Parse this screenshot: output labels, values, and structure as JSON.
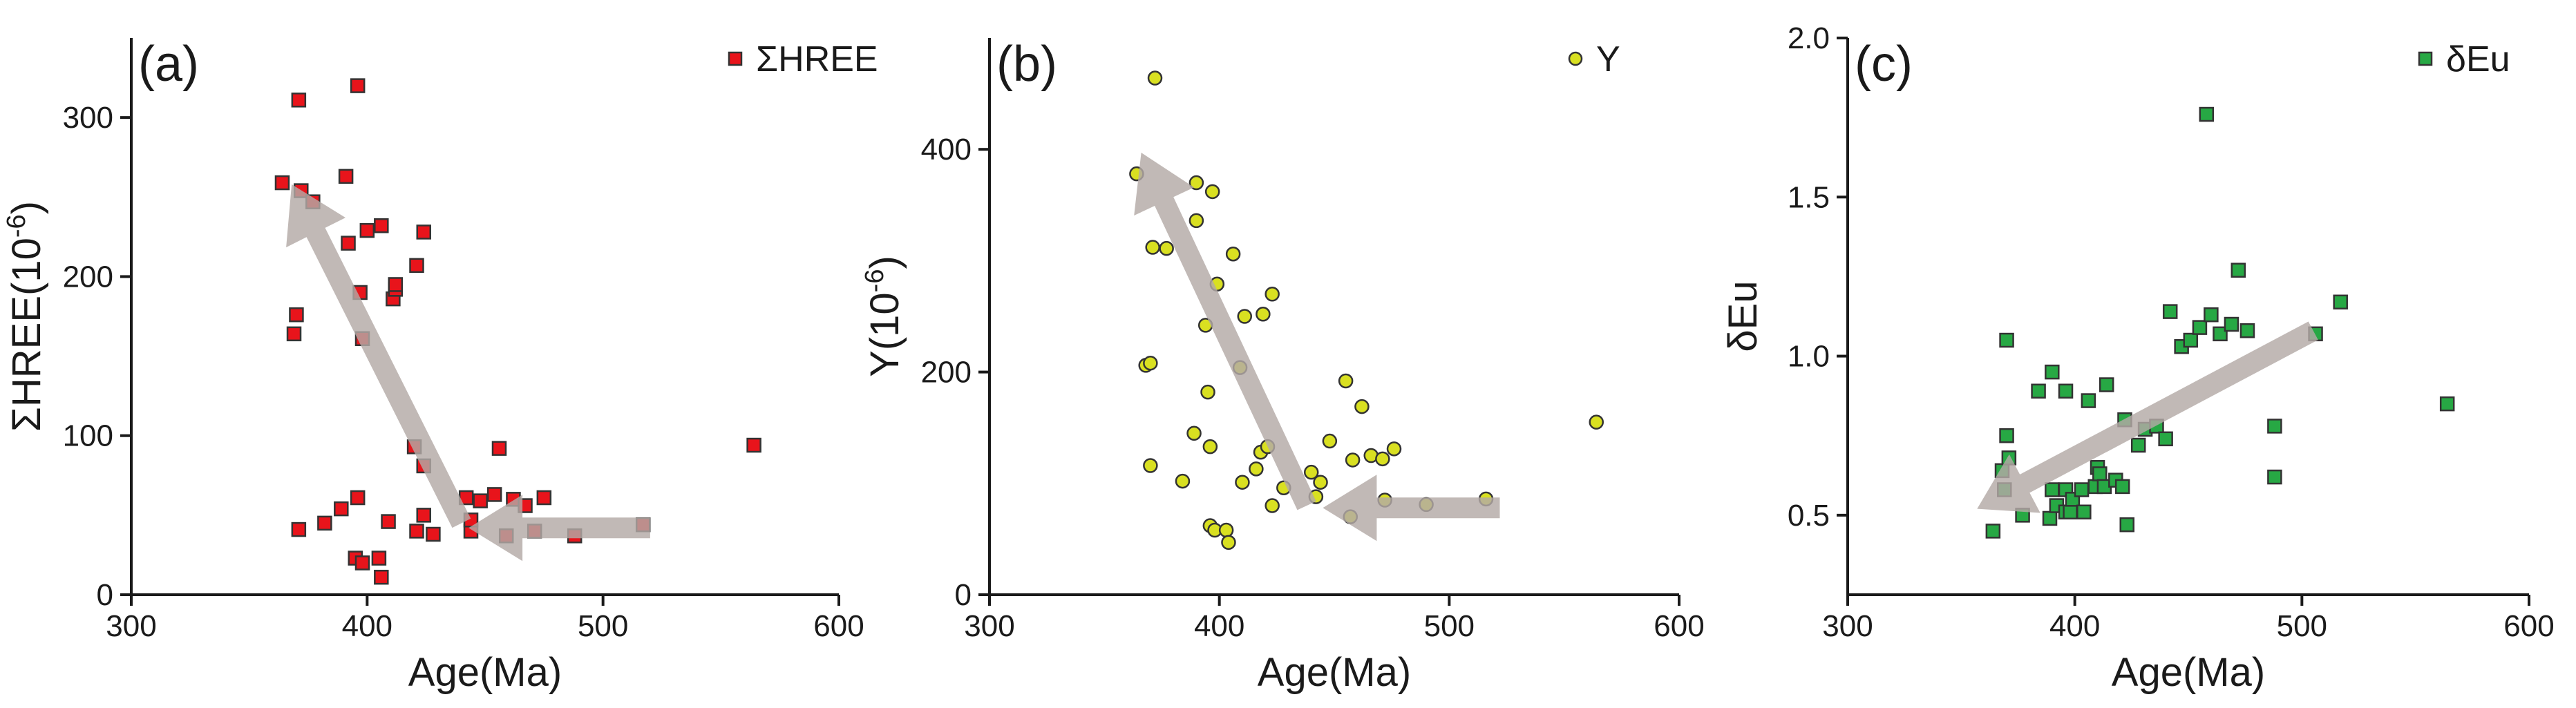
{
  "chart_data": [
    {
      "type": "scatter",
      "panel_label": "(a)",
      "xlabel": "Age(Ma)",
      "ylabel": "ΣHREE(10-6)",
      "ylabel_base": "ΣHREE(10",
      "ylabel_exp": "-6",
      "ylabel_close": ")",
      "xlim": [
        300,
        600
      ],
      "ylim": [
        0,
        350
      ],
      "xticks": [
        300,
        400,
        500,
        600
      ],
      "yticks": [
        0,
        100,
        200,
        300
      ],
      "marker": "square",
      "legend_position": "top-right",
      "grid": false,
      "series": [
        {
          "name": "ΣHREE",
          "color": "#e8141b",
          "points": [
            [
              364,
              259
            ],
            [
              369,
              164
            ],
            [
              370,
              176
            ],
            [
              371,
              41
            ],
            [
              371,
              311
            ],
            [
              372,
              254
            ],
            [
              377,
              247
            ],
            [
              382,
              45
            ],
            [
              389,
              54
            ],
            [
              391,
              263
            ],
            [
              392,
              221
            ],
            [
              395,
              23
            ],
            [
              396,
              61
            ],
            [
              396,
              320
            ],
            [
              397,
              190
            ],
            [
              398,
              161
            ],
            [
              398,
              20
            ],
            [
              400,
              229
            ],
            [
              405,
              23
            ],
            [
              406,
              11
            ],
            [
              406,
              232
            ],
            [
              409,
              46
            ],
            [
              411,
              186
            ],
            [
              412,
              192
            ],
            [
              412,
              195
            ],
            [
              420,
              93
            ],
            [
              421,
              207
            ],
            [
              421,
              40
            ],
            [
              424,
              228
            ],
            [
              424,
              81
            ],
            [
              424,
              50
            ],
            [
              428,
              38
            ],
            [
              442,
              61
            ],
            [
              444,
              40
            ],
            [
              444,
              47
            ],
            [
              448,
              59
            ],
            [
              454,
              63
            ],
            [
              456,
              92
            ],
            [
              459,
              37
            ],
            [
              462,
              60
            ],
            [
              467,
              56
            ],
            [
              471,
              40
            ],
            [
              475,
              61
            ],
            [
              488,
              37
            ],
            [
              517,
              44
            ],
            [
              564,
              94
            ]
          ]
        }
      ],
      "trend_arrows": [
        {
          "from": [
            440,
            45
          ],
          "to": [
            368,
            258
          ]
        },
        {
          "from": [
            520,
            42
          ],
          "to": [
            443,
            42
          ]
        }
      ]
    },
    {
      "type": "scatter",
      "panel_label": "(b)",
      "xlabel": "Age(Ma)",
      "ylabel": "Y(10-6)",
      "ylabel_base": "Y(10",
      "ylabel_exp": "-6",
      "ylabel_close": ")",
      "xlim": [
        300,
        600
      ],
      "ylim": [
        0,
        500
      ],
      "xticks": [
        300,
        400,
        500,
        600
      ],
      "yticks": [
        0,
        200,
        400
      ],
      "marker": "circle",
      "legend_position": "top-right",
      "grid": false,
      "series": [
        {
          "name": "Y",
          "color": "#d9e021",
          "points": [
            [
              364,
              378
            ],
            [
              368,
              206
            ],
            [
              370,
              208
            ],
            [
              370,
              116
            ],
            [
              371,
              312
            ],
            [
              372,
              464
            ],
            [
              377,
              311
            ],
            [
              384,
              102
            ],
            [
              389,
              145
            ],
            [
              390,
              336
            ],
            [
              390,
              370
            ],
            [
              394,
              242
            ],
            [
              395,
              182
            ],
            [
              396,
              62
            ],
            [
              396,
              133
            ],
            [
              397,
              362
            ],
            [
              398,
              58
            ],
            [
              399,
              279
            ],
            [
              403,
              58
            ],
            [
              404,
              47
            ],
            [
              406,
              306
            ],
            [
              409,
              204
            ],
            [
              410,
              101
            ],
            [
              411,
              250
            ],
            [
              416,
              113
            ],
            [
              418,
              128
            ],
            [
              419,
              252
            ],
            [
              421,
              133
            ],
            [
              423,
              270
            ],
            [
              423,
              80
            ],
            [
              428,
              96
            ],
            [
              440,
              110
            ],
            [
              442,
              88
            ],
            [
              444,
              101
            ],
            [
              448,
              138
            ],
            [
              455,
              192
            ],
            [
              457,
              70
            ],
            [
              458,
              121
            ],
            [
              462,
              169
            ],
            [
              466,
              125
            ],
            [
              471,
              122
            ],
            [
              472,
              85
            ],
            [
              476,
              131
            ],
            [
              490,
              81
            ],
            [
              516,
              86
            ],
            [
              564,
              155
            ]
          ]
        }
      ],
      "trend_arrows": [
        {
          "from": [
            438,
            80
          ],
          "to": [
            366,
            397
          ]
        },
        {
          "from": [
            522,
            78
          ],
          "to": [
            445,
            78
          ]
        }
      ]
    },
    {
      "type": "scatter",
      "panel_label": "(c)",
      "xlabel": "Age(Ma)",
      "ylabel": "δEu",
      "xlim": [
        300,
        600
      ],
      "ylim": [
        0.25,
        2.0
      ],
      "xticks": [
        300,
        400,
        500,
        600
      ],
      "yticks": [
        0.5,
        1.0,
        1.5,
        2.0
      ],
      "ytick_labels": [
        "0.5",
        "1.0",
        "1.5",
        "2.0"
      ],
      "marker": "square",
      "legend_position": "top-right",
      "grid": false,
      "series": [
        {
          "name": "δEu",
          "color": "#27a844",
          "points": [
            [
              364,
              0.45
            ],
            [
              368,
              0.64
            ],
            [
              369,
              0.58
            ],
            [
              370,
              0.75
            ],
            [
              370,
              1.05
            ],
            [
              371,
              0.68
            ],
            [
              377,
              0.5
            ],
            [
              384,
              0.89
            ],
            [
              389,
              0.49
            ],
            [
              390,
              0.95
            ],
            [
              390,
              0.58
            ],
            [
              392,
              0.53
            ],
            [
              396,
              0.89
            ],
            [
              396,
              0.51
            ],
            [
              396,
              0.58
            ],
            [
              398,
              0.51
            ],
            [
              399,
              0.55
            ],
            [
              403,
              0.58
            ],
            [
              404,
              0.51
            ],
            [
              406,
              0.86
            ],
            [
              409,
              0.59
            ],
            [
              410,
              0.65
            ],
            [
              411,
              0.63
            ],
            [
              413,
              0.59
            ],
            [
              414,
              0.91
            ],
            [
              418,
              0.61
            ],
            [
              421,
              0.59
            ],
            [
              422,
              0.8
            ],
            [
              423,
              0.47
            ],
            [
              428,
              0.72
            ],
            [
              431,
              0.77
            ],
            [
              436,
              0.78
            ],
            [
              440,
              0.74
            ],
            [
              442,
              1.14
            ],
            [
              447,
              1.03
            ],
            [
              451,
              1.05
            ],
            [
              455,
              1.09
            ],
            [
              458,
              1.76
            ],
            [
              460,
              1.13
            ],
            [
              464,
              1.07
            ],
            [
              469,
              1.1
            ],
            [
              472,
              1.27
            ],
            [
              476,
              1.08
            ],
            [
              488,
              0.62
            ],
            [
              488,
              0.78
            ],
            [
              506,
              1.07
            ],
            [
              517,
              1.17
            ],
            [
              564,
              0.85
            ]
          ]
        }
      ],
      "trend_arrows": [
        {
          "from": [
            505,
            1.08
          ],
          "to": [
            357,
            0.52
          ]
        }
      ]
    }
  ]
}
